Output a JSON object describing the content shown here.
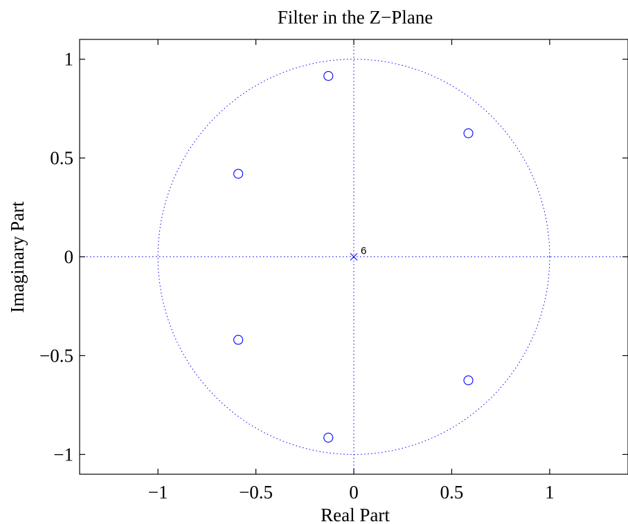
{
  "chart_data": {
    "type": "scatter",
    "title": "Filter in the Z−Plane",
    "xlabel": "Real Part",
    "ylabel": "Imaginary Part",
    "xlim": [
      -1.4,
      1.4
    ],
    "ylim": [
      -1.1,
      1.1
    ],
    "x_ticks": [
      -1,
      -0.5,
      0,
      0.5,
      1
    ],
    "y_ticks": [
      -1,
      -0.5,
      0,
      0.5,
      1
    ],
    "x_tick_labels": [
      "−1",
      "−0.5",
      "0",
      "0.5",
      "1"
    ],
    "y_tick_labels": [
      "−1",
      "−0.5",
      "0",
      "0.5",
      "1"
    ],
    "grid": false,
    "unit_circle": true,
    "zeros": {
      "marker": "circle",
      "color": "#0000ff",
      "points": [
        {
          "x": -0.13,
          "y": 0.915
        },
        {
          "x": 0.585,
          "y": 0.625
        },
        {
          "x": -0.59,
          "y": 0.42
        },
        {
          "x": -0.59,
          "y": -0.42
        },
        {
          "x": 0.585,
          "y": -0.625
        },
        {
          "x": -0.13,
          "y": -0.915
        }
      ]
    },
    "poles": {
      "marker": "x",
      "color": "#0000ff",
      "points": [
        {
          "x": 0,
          "y": 0,
          "multiplicity": "6"
        }
      ]
    }
  }
}
